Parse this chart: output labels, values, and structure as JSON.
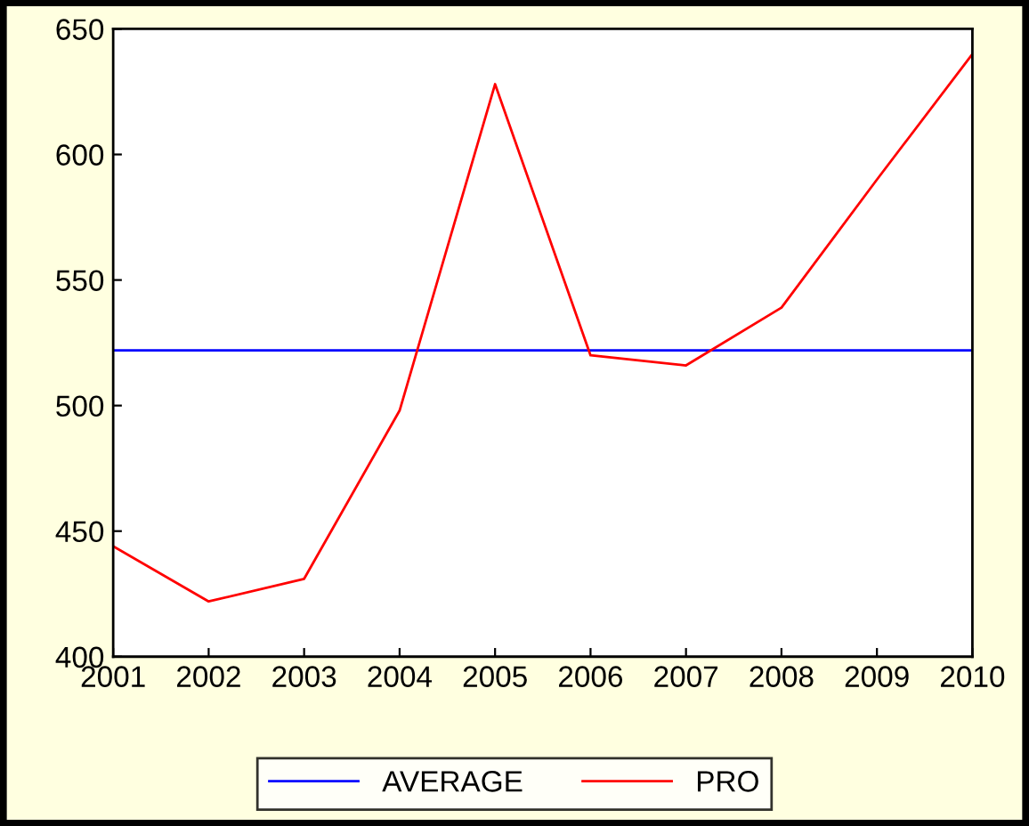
{
  "chart_data": {
    "type": "line",
    "x": [
      2001,
      2002,
      2003,
      2004,
      2005,
      2006,
      2007,
      2008,
      2009,
      2010
    ],
    "series": [
      {
        "name": "AVERAGE",
        "color": "#0000ff",
        "values": [
          522,
          522,
          522,
          522,
          522,
          522,
          522,
          522,
          522,
          522
        ]
      },
      {
        "name": "PRO",
        "color": "#ff0000",
        "values": [
          444,
          422,
          431,
          498,
          628,
          520,
          516,
          539,
          590,
          640
        ]
      }
    ],
    "xlim": [
      2001,
      2010
    ],
    "xticks": [
      2001,
      2002,
      2003,
      2004,
      2005,
      2006,
      2007,
      2008,
      2009,
      2010
    ],
    "ylim": [
      400,
      650
    ],
    "yticks": [
      400,
      450,
      500,
      550,
      600,
      650
    ],
    "grid": false,
    "legend": "bottom",
    "marker": "none",
    "line_style": "solid"
  }
}
